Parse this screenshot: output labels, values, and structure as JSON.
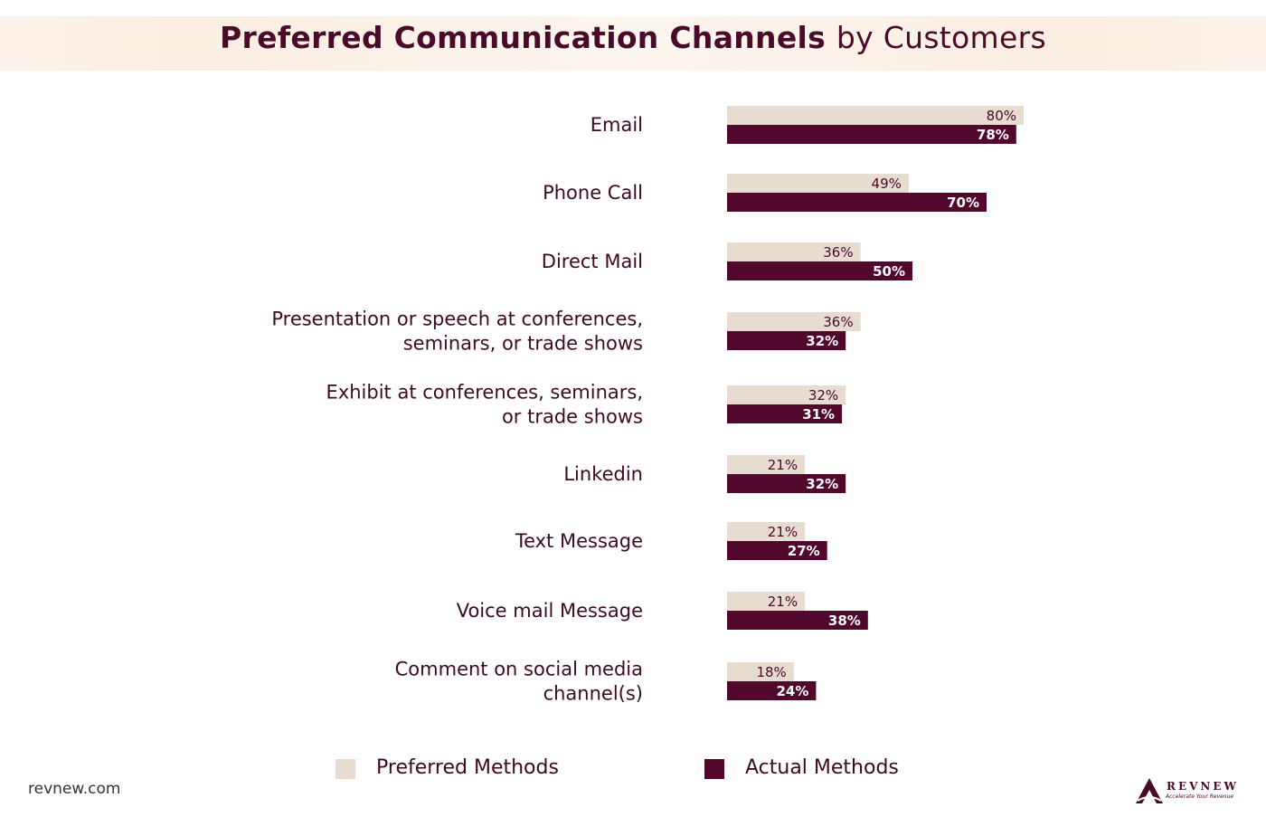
{
  "chart_data": {
    "type": "bar",
    "orientation": "horizontal",
    "title": "Preferred Communication Channels",
    "title_suffix": "by Customers",
    "categories": [
      [
        "Email"
      ],
      [
        "Phone Call"
      ],
      [
        "Direct Mail"
      ],
      [
        "Presentation or speech at conferences,",
        "seminars, or trade shows"
      ],
      [
        "Exhibit at conferences, seminars,",
        "or trade shows"
      ],
      [
        "Linkedin"
      ],
      [
        "Text Message"
      ],
      [
        "Voice mail Message"
      ],
      [
        "Comment on social media",
        "channel(s)"
      ]
    ],
    "series": [
      {
        "name": "Preferred Methods",
        "color": "#e8dbcf",
        "values": [
          80,
          49,
          36,
          36,
          32,
          21,
          21,
          21,
          18
        ]
      },
      {
        "name": "Actual Methods",
        "color": "#52082d",
        "values": [
          78,
          70,
          50,
          32,
          31,
          32,
          27,
          38,
          24
        ]
      }
    ],
    "value_suffix": "%",
    "legend_position": "bottom",
    "grid": false
  },
  "footer": {
    "site": "revnew.com",
    "logo_text": "REVNEW",
    "logo_tagline": "Accelerate Your Revenue"
  }
}
